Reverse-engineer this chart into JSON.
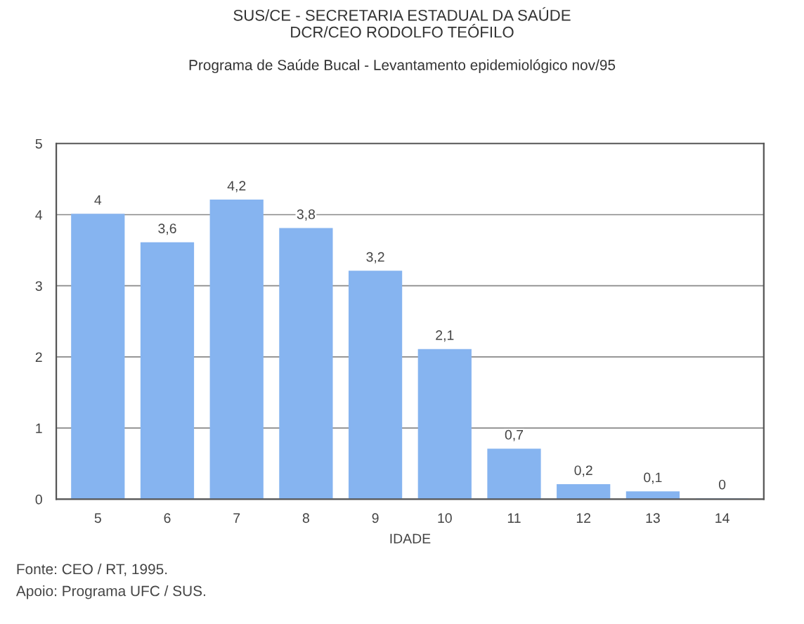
{
  "chart_data": {
    "type": "bar",
    "title": "SUS/CE - SECRETARIA ESTADUAL DA SAÚDE\nDCR/CEO RODOLFO TEÓFILO",
    "subtitle": "Programa de Saúde Bucal - Levantamento epidemiológico nov/95",
    "xlabel": "IDADE",
    "categories": [
      "5",
      "6",
      "7",
      "8",
      "9",
      "10",
      "11",
      "12",
      "13",
      "14"
    ],
    "values": [
      4,
      3.6,
      4.2,
      3.8,
      3.2,
      2.1,
      0.7,
      0.2,
      0.1,
      0
    ],
    "value_labels": [
      "4",
      "3,6",
      "4,2",
      "3,8",
      "3,2",
      "2,1",
      "0,7",
      "0,2",
      "0,1",
      "0"
    ],
    "color": "#86b4f0",
    "ylim": [
      0,
      5
    ],
    "yticks": [
      0,
      1,
      2,
      3,
      4,
      5
    ],
    "grid": "y",
    "annotations": [
      "Fonte: CEO / RT, 1995.",
      "Apoio: Programa UFC / SUS."
    ]
  }
}
